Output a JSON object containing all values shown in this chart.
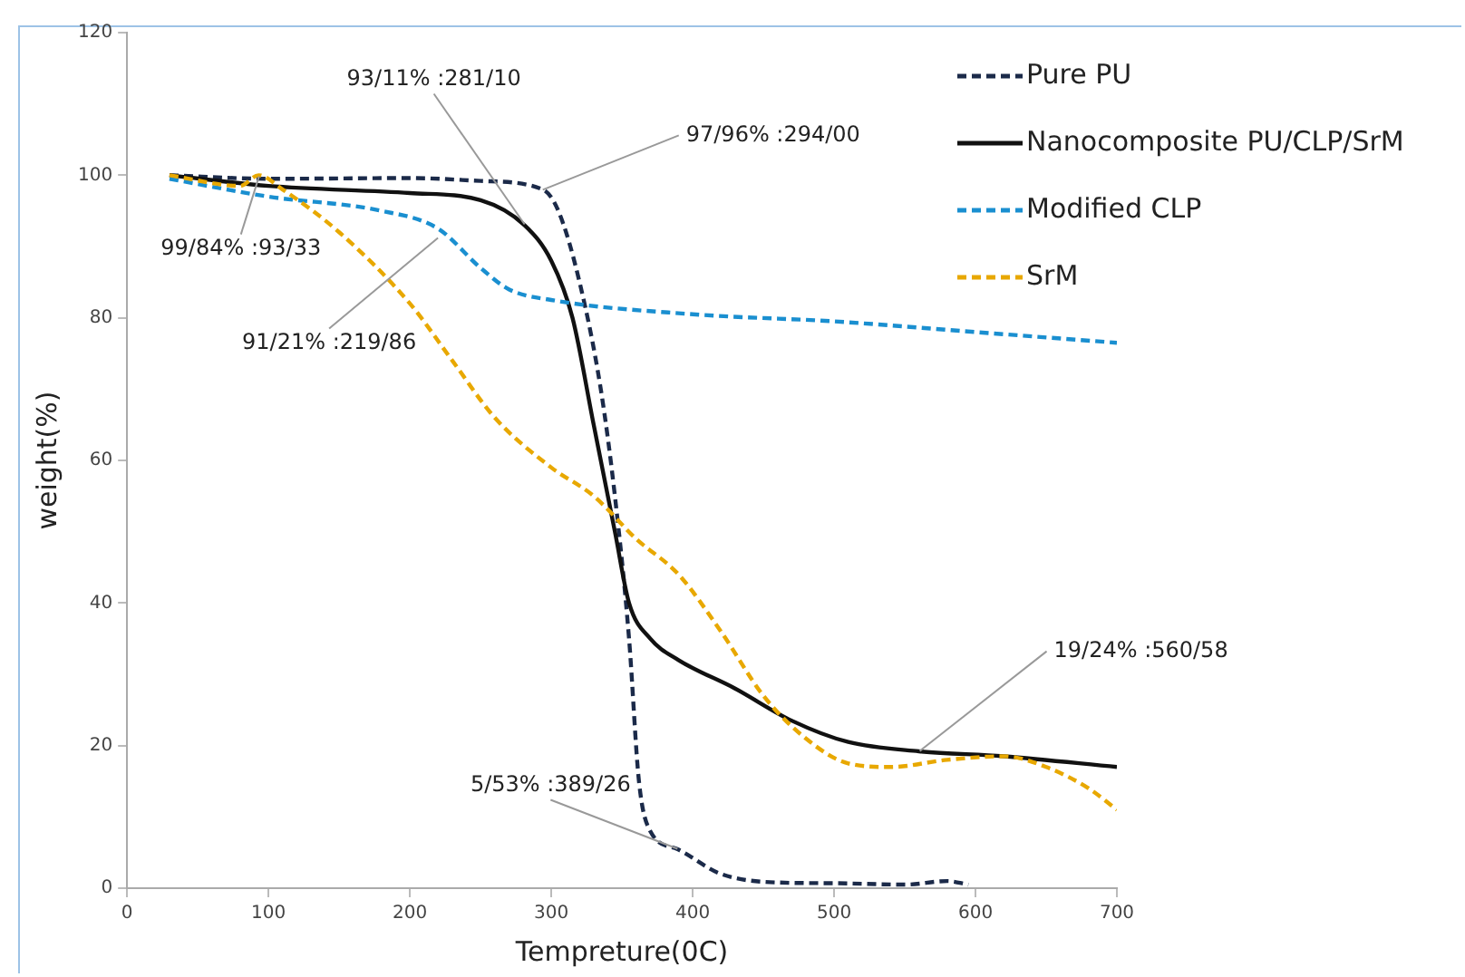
{
  "chart_data": {
    "type": "line",
    "xlabel": "Tempreture(0C)",
    "ylabel": "weight(%)",
    "xlim": [
      0,
      700
    ],
    "xticks": [
      0,
      100,
      200,
      300,
      400,
      500,
      600,
      700
    ],
    "ylim": [
      0,
      120
    ],
    "yticks": [
      0,
      20,
      40,
      60,
      80,
      100,
      120
    ],
    "grid": false,
    "legend": "top right",
    "marker": "none",
    "series": [
      {
        "name": "Pure PU",
        "color": "#1b2a49",
        "line_style": "dashed",
        "x": [
          30,
          100,
          200,
          250,
          294,
          305,
          320,
          335,
          345,
          355,
          362,
          370,
          389,
          420,
          460,
          500,
          550,
          580,
          595
        ],
        "values": [
          100,
          99.5,
          99.6,
          99.2,
          98,
          95,
          85,
          70,
          55,
          35,
          15,
          8,
          5.5,
          2,
          0.8,
          0.7,
          0.5,
          1,
          0.5
        ]
      },
      {
        "name": "Nanocomposite PU/CLP/SrM",
        "color": "#111111",
        "line_style": "solid",
        "x": [
          30,
          100,
          200,
          250,
          281,
          300,
          315,
          330,
          345,
          355,
          370,
          390,
          430,
          470,
          510,
          560,
          620,
          700
        ],
        "values": [
          100,
          98.5,
          97.5,
          96.5,
          93,
          88,
          80,
          65,
          50,
          40,
          35,
          32,
          28,
          23.5,
          20.5,
          19.2,
          18.5,
          17
        ]
      },
      {
        "name": "Modified CLP",
        "color": "#1a8fd0",
        "line_style": "dashed",
        "x": [
          30,
          100,
          180,
          220,
          250,
          270,
          300,
          400,
          500,
          600,
          700
        ],
        "values": [
          99.5,
          97,
          95,
          92.5,
          87,
          84,
          82.5,
          80.5,
          79.5,
          78,
          76.5
        ]
      },
      {
        "name": "SrM",
        "color": "#e8a800",
        "line_style": "dashed",
        "x": [
          30,
          80,
          93,
          110,
          150,
          200,
          230,
          260,
          300,
          330,
          360,
          390,
          420,
          450,
          480,
          510,
          540,
          580,
          620,
          650,
          680,
          700
        ],
        "values": [
          100,
          98.5,
          100,
          98,
          92,
          82,
          74,
          66,
          59,
          55,
          49,
          44,
          36,
          27,
          21,
          17.5,
          17,
          18,
          18.5,
          17,
          14,
          11
        ]
      }
    ],
    "annotations": [
      {
        "text": "93/11% :281/10",
        "x": 281.1,
        "y": 93.11
      },
      {
        "text": "97/96% :294/00",
        "x": 294,
        "y": 97.96
      },
      {
        "text": "99/84% :93/33",
        "x": 93.33,
        "y": 99.84
      },
      {
        "text": "91/21% :219/86",
        "x": 219.86,
        "y": 91.21
      },
      {
        "text": "5/53% :389/26",
        "x": 389.26,
        "y": 5.53
      },
      {
        "text": "19/24% :560/58",
        "x": 560.58,
        "y": 19.24
      }
    ]
  }
}
